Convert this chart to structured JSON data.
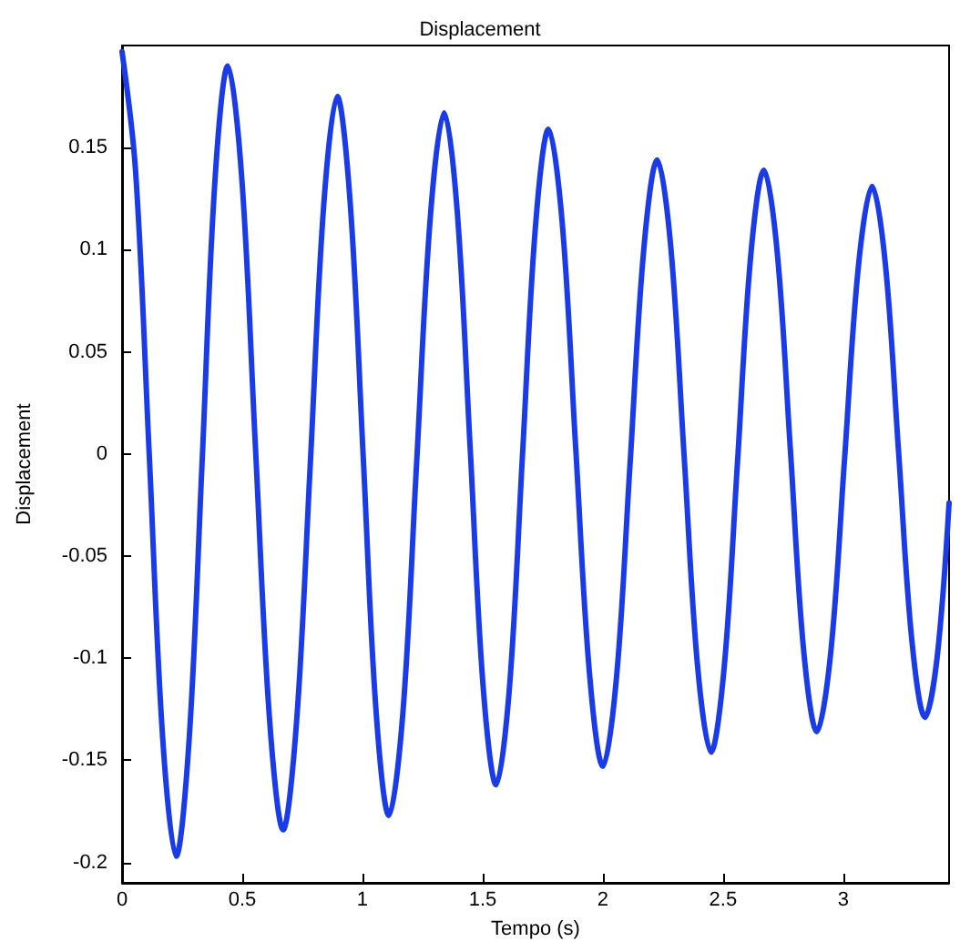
{
  "chart_data": {
    "type": "line",
    "title": "Displacement",
    "xlabel": "Tempo (s)",
    "ylabel": "Displacement",
    "x": [
      0,
      0.056,
      0.113,
      0.169,
      0.225,
      0.279,
      0.333,
      0.386,
      0.44,
      0.498,
      0.555,
      0.613,
      0.67,
      0.726,
      0.783,
      0.839,
      0.895,
      0.949,
      1.003,
      1.056,
      1.11,
      1.168,
      1.225,
      1.283,
      1.34,
      1.394,
      1.448,
      1.502,
      1.556,
      1.611,
      1.665,
      1.72,
      1.774,
      1.831,
      1.887,
      1.944,
      2.0,
      2.057,
      2.113,
      2.17,
      2.226,
      2.282,
      2.338,
      2.394,
      2.45,
      2.505,
      2.56,
      2.615,
      2.67,
      2.725,
      2.78,
      2.835,
      2.89,
      2.948,
      3.005,
      3.063,
      3.12,
      3.175,
      3.23,
      3.285,
      3.34,
      3.39,
      3.44
    ],
    "series": [
      {
        "color": "#1a3be8",
        "values": [
          0.197,
          0.139,
          0,
          -0.139,
          -0.197,
          -0.14,
          -0.004,
          0.133,
          0.19,
          0.135,
          0.003,
          -0.129,
          -0.184,
          -0.131,
          -0.005,
          0.122,
          0.175,
          0.123,
          -0.001,
          -0.125,
          -0.177,
          -0.127,
          -0.005,
          0.117,
          0.167,
          0.119,
          0.003,
          -0.114,
          -0.162,
          -0.115,
          -0.002,
          0.112,
          0.159,
          0.113,
          0.003,
          -0.107,
          -0.153,
          -0.109,
          -0.005,
          0.1,
          0.144,
          0.102,
          -0.001,
          -0.104,
          -0.146,
          -0.104,
          -0.004,
          0.097,
          0.139,
          0.099,
          0.002,
          -0.096,
          -0.136,
          -0.097,
          -0.003,
          0.092,
          0.131,
          0.093,
          0.001,
          -0.091,
          -0.129,
          -0.1,
          -0.024
        ]
      }
    ],
    "xlim": [
      0,
      3.44
    ],
    "xticks": [
      0,
      0.5,
      1,
      1.5,
      2,
      2.5,
      3
    ],
    "ylim": [
      -0.21,
      0.2
    ],
    "yticks": [
      -0.2,
      -0.15,
      -0.1,
      -0.05,
      0,
      0.05,
      0.1,
      0.15
    ],
    "grid": false,
    "marker": "none",
    "line_style": "solid"
  }
}
